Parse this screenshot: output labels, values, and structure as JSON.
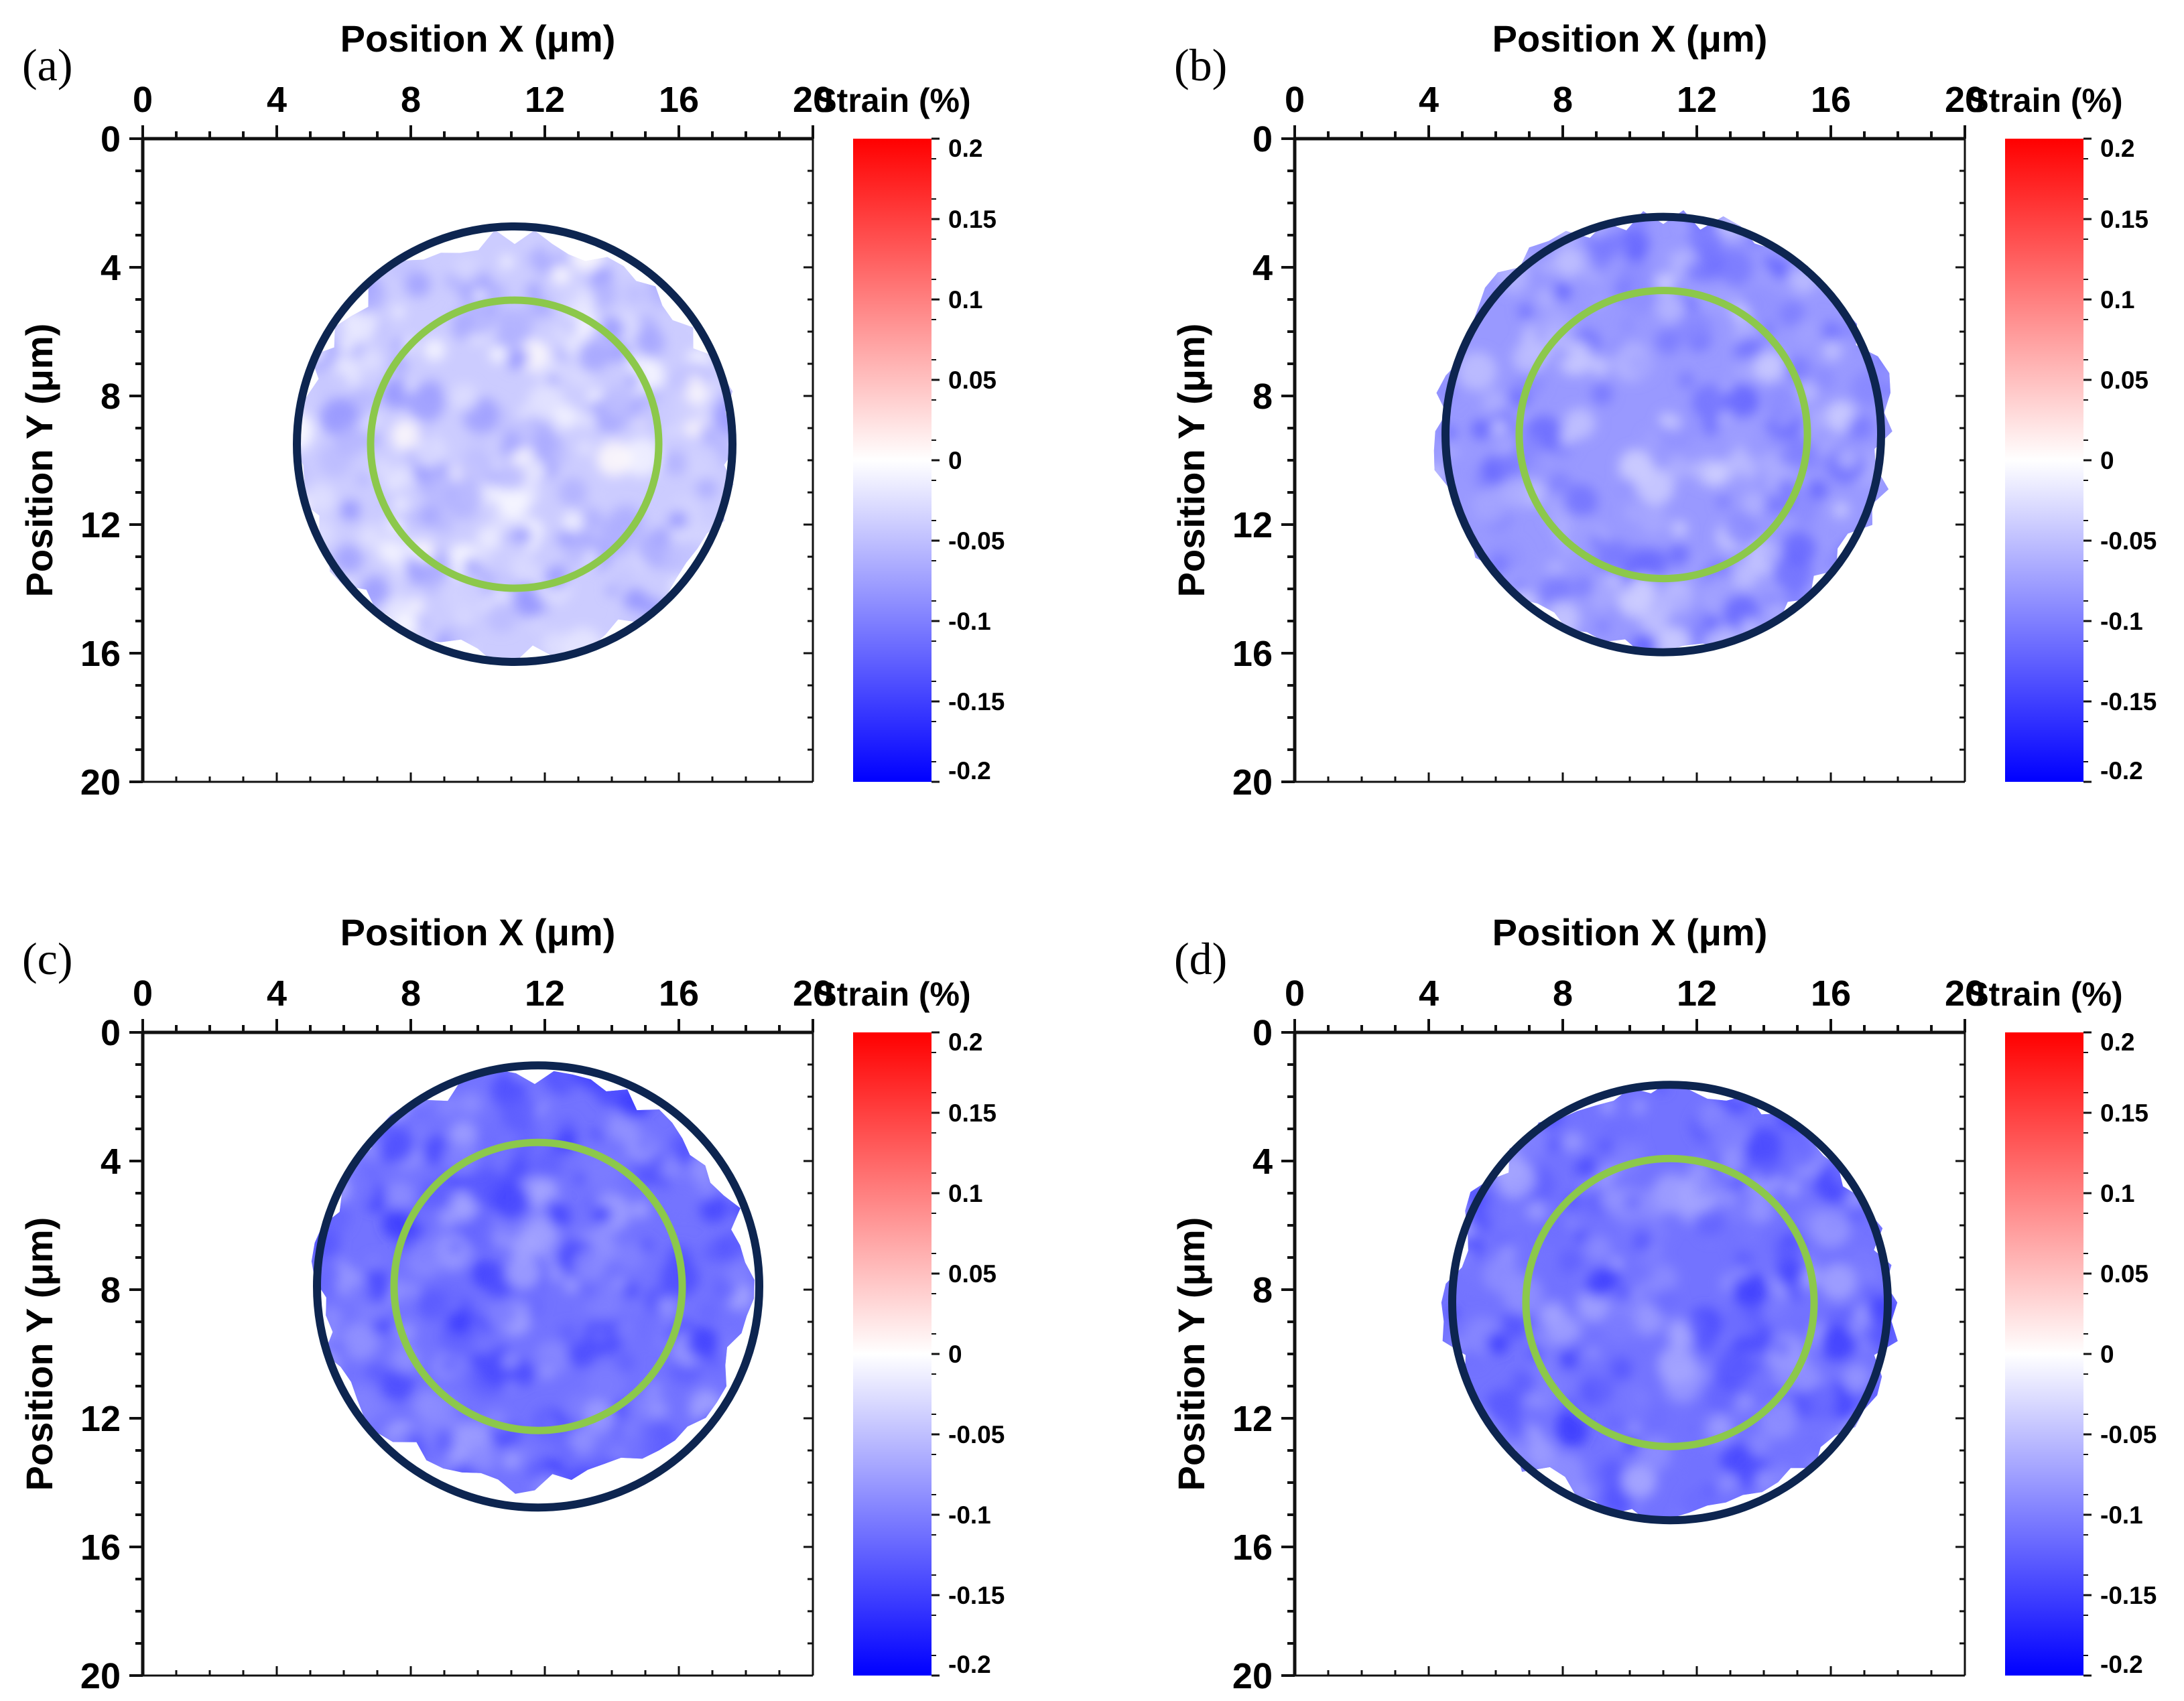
{
  "figure": {
    "panels": [
      {
        "label": "(a)",
        "x_axis_title": "Position X (μm)",
        "y_axis_title": "Position Y (μm)",
        "colorbar_title": "Strain (%)"
      },
      {
        "label": "(b)",
        "x_axis_title": "Position X (μm)",
        "y_axis_title": "Position Y (μm)",
        "colorbar_title": "Strain (%)"
      },
      {
        "label": "(c)",
        "x_axis_title": "Position X (μm)",
        "y_axis_title": "Position Y (μm)",
        "colorbar_title": "Strain (%)"
      },
      {
        "label": "(d)",
        "x_axis_title": "Position X (μm)",
        "y_axis_title": "Position Y (μm)",
        "colorbar_title": "Strain (%)"
      }
    ]
  },
  "colors": {
    "outer_circle": "#0d2550",
    "inner_circle": "#8cc84b",
    "axis": "#111111",
    "colormap": [
      "#1414ff",
      "#ffffff",
      "#ff1414"
    ]
  },
  "chart_data": [
    {
      "type": "heatmap",
      "panel": "(a)",
      "xlabel": "Position X (μm)",
      "ylabel": "Position Y (μm)",
      "xlim": [
        0,
        20
      ],
      "ylim": [
        0,
        20
      ],
      "y_inverted": true,
      "xticks": [
        0,
        4,
        8,
        12,
        16,
        20
      ],
      "yticks": [
        0,
        4,
        8,
        12,
        16,
        20
      ],
      "colorbar": {
        "title": "Strain (%)",
        "range": [
          -0.2,
          0.2
        ],
        "ticks": [
          0.2,
          0.15,
          0.1,
          0.05,
          0,
          -0.05,
          -0.1,
          -0.15,
          -0.2
        ]
      },
      "typical_strain": -0.04,
      "sample_region": {
        "cx": 11.1,
        "cy": 9.6,
        "r": 6.6
      },
      "outer_circle": {
        "cx": 11.1,
        "cy": 9.5,
        "r": 6.5
      },
      "inner_circle": {
        "cx": 11.1,
        "cy": 9.5,
        "r": 4.3
      }
    },
    {
      "type": "heatmap",
      "panel": "(b)",
      "xlabel": "Position X (μm)",
      "ylabel": "Position Y (μm)",
      "xlim": [
        0,
        20
      ],
      "ylim": [
        0,
        20
      ],
      "y_inverted": true,
      "xticks": [
        0,
        4,
        8,
        12,
        16,
        20
      ],
      "yticks": [
        0,
        4,
        8,
        12,
        16,
        20
      ],
      "colorbar": {
        "title": "Strain (%)",
        "range": [
          -0.2,
          0.2
        ],
        "ticks": [
          0.2,
          0.15,
          0.1,
          0.05,
          0,
          -0.05,
          -0.1,
          -0.15,
          -0.2
        ]
      },
      "typical_strain": -0.08,
      "sample_region": {
        "cx": 11.0,
        "cy": 9.1,
        "r": 6.8
      },
      "outer_circle": {
        "cx": 11.0,
        "cy": 9.2,
        "r": 6.5
      },
      "inner_circle": {
        "cx": 11.0,
        "cy": 9.2,
        "r": 4.3
      }
    },
    {
      "type": "heatmap",
      "panel": "(c)",
      "xlabel": "Position X (μm)",
      "ylabel": "Position Y (μm)",
      "xlim": [
        0,
        20
      ],
      "ylim": [
        0,
        20
      ],
      "y_inverted": true,
      "xticks": [
        0,
        4,
        8,
        12,
        16,
        20
      ],
      "yticks": [
        0,
        4,
        8,
        12,
        16,
        20
      ],
      "colorbar": {
        "title": "Strain (%)",
        "range": [
          -0.2,
          0.2
        ],
        "ticks": [
          0.2,
          0.15,
          0.1,
          0.05,
          0,
          -0.05,
          -0.1,
          -0.15,
          -0.2
        ]
      },
      "typical_strain": -0.11,
      "sample_region": {
        "cx": 11.7,
        "cy": 7.7,
        "r": 6.5
      },
      "outer_circle": {
        "cx": 11.8,
        "cy": 7.9,
        "r": 6.6
      },
      "inner_circle": {
        "cx": 11.8,
        "cy": 7.9,
        "r": 4.3
      }
    },
    {
      "type": "heatmap",
      "panel": "(d)",
      "xlabel": "Position X (μm)",
      "ylabel": "Position Y (μm)",
      "xlim": [
        0,
        20
      ],
      "ylim": [
        0,
        20
      ],
      "y_inverted": true,
      "xticks": [
        0,
        4,
        8,
        12,
        16,
        20
      ],
      "yticks": [
        0,
        4,
        8,
        12,
        16,
        20
      ],
      "colorbar": {
        "title": "Strain (%)",
        "range": [
          -0.2,
          0.2
        ],
        "ticks": [
          0.2,
          0.15,
          0.1,
          0.05,
          0,
          -0.05,
          -0.1,
          -0.15,
          -0.2
        ]
      },
      "typical_strain": -0.11,
      "sample_region": {
        "cx": 11.2,
        "cy": 8.4,
        "r": 6.7
      },
      "outer_circle": {
        "cx": 11.2,
        "cy": 8.4,
        "r": 6.5
      },
      "inner_circle": {
        "cx": 11.2,
        "cy": 8.4,
        "r": 4.3
      }
    }
  ]
}
